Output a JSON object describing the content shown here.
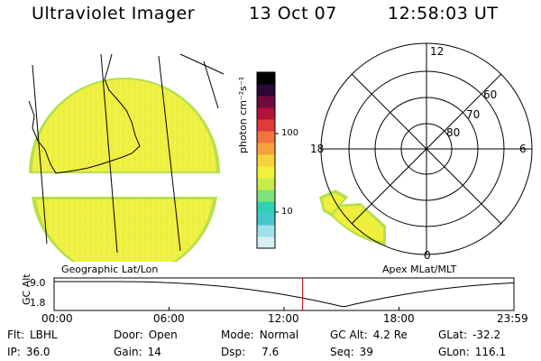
{
  "header": {
    "instrument": "Ultraviolet Imager",
    "date": "13 Oct 07",
    "time": "12:58:03 UT"
  },
  "colorbar": {
    "ticks": [
      "100",
      "10"
    ],
    "unit": "photon cm⁻²s⁻¹",
    "colors": [
      "#d9eef3",
      "#9fe0e6",
      "#44c6cf",
      "#2fd0b5",
      "#7ee27a",
      "#c6ec48",
      "#eef23a",
      "#f8d23a",
      "#f7a13c",
      "#f1753c",
      "#e03a3a",
      "#b3123b",
      "#6d0a3e",
      "#2a0838",
      "#000000"
    ]
  },
  "geographic": {
    "label": "Geographic Lat/Lon"
  },
  "apex": {
    "label": "Apex  MLat/MLT",
    "mlt_labels": [
      "12",
      "18",
      "6",
      "0"
    ],
    "lat_labels": [
      "60",
      "70",
      "80"
    ]
  },
  "altitude_plot": {
    "axis_title": "GC Alt",
    "y_ticks": [
      "9.0",
      "1.8"
    ],
    "time_ticks": [
      "00:00",
      "06:00",
      "12:00",
      "18:00",
      "23:59"
    ],
    "current_hour": 12.97,
    "min_hour": 15.1
  },
  "info": {
    "rows": [
      [
        {
          "label": "Flt:",
          "value": "LBHL"
        },
        {
          "label": "Door:",
          "value": "Open"
        },
        {
          "label": "Mode:",
          "value": "Normal"
        },
        {
          "label": "GC Alt:",
          "value": "4.2 Re"
        },
        {
          "label": "GLat:",
          "value": "-32.2"
        }
      ],
      [
        {
          "label": "IP:",
          "value": "36.0"
        },
        {
          "label": "Gain:",
          "value": "14"
        },
        {
          "label": "Dsp:",
          "value": "7.6"
        },
        {
          "label": "Seq:",
          "value": "39"
        },
        {
          "label": "GLon:",
          "value": "116.1"
        }
      ]
    ]
  }
}
